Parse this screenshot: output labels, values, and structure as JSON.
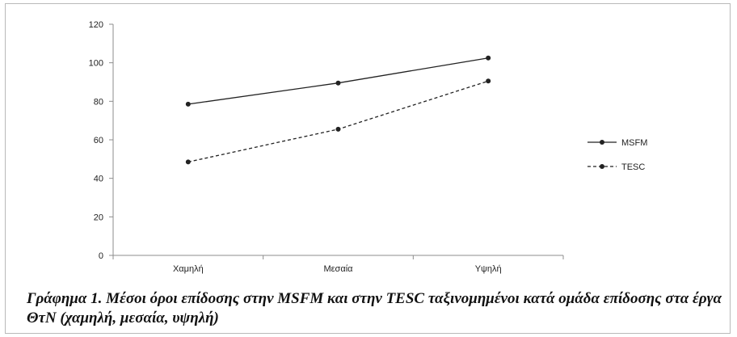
{
  "chart_data": {
    "type": "line",
    "categories": [
      "Χαμηλή",
      "Μεσαία",
      "Υψηλή"
    ],
    "series": [
      {
        "name": "MSFM",
        "values": [
          78.5,
          89.5,
          102.5
        ],
        "style": "solid",
        "color": "#222222"
      },
      {
        "name": "TESC",
        "values": [
          48.5,
          65.5,
          90.5
        ],
        "style": "dashed",
        "color": "#222222"
      }
    ],
    "ylim": [
      0,
      120
    ],
    "yticks": [
      0,
      20,
      40,
      60,
      80,
      100,
      120
    ],
    "ytick_labels": [
      "0",
      "20",
      "40",
      "60",
      "80",
      "100",
      "120"
    ],
    "legend_position": "right",
    "grid": false
  },
  "caption": "Γράφημα 1. Μέσοι όροι επίδοσης στην MSFM και στην TESC ταξινομημένοι κατά ομάδα επίδοσης στα έργα ΘτΝ (χαμηλή, μεσαία, υψηλή)"
}
